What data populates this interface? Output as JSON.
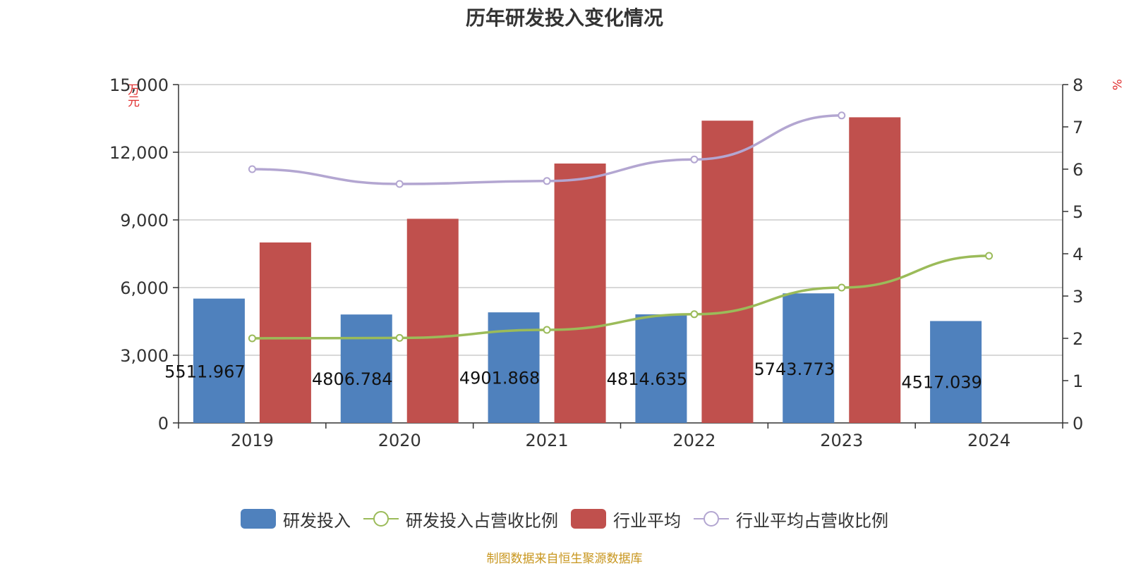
{
  "chart_data": {
    "type": "bar",
    "title": "历年研发投入变化情况",
    "categories": [
      "2019",
      "2020",
      "2021",
      "2022",
      "2023",
      "2024"
    ],
    "y_left": {
      "unit_label": "万元",
      "ylim": [
        0,
        15000
      ],
      "ticks": [
        "0",
        "3,000",
        "6,000",
        "9,000",
        "12,000",
        "15,000"
      ]
    },
    "y_right": {
      "unit_label": "%",
      "ylim": [
        0,
        8
      ],
      "ticks": [
        "0",
        "1",
        "2",
        "3",
        "4",
        "5",
        "6",
        "7",
        "8"
      ]
    },
    "grid": true,
    "legend_position": "bottom",
    "series": [
      {
        "name": "研发投入",
        "type": "bar",
        "axis": "left",
        "color": "#4f81bd",
        "values": [
          5511.967,
          4806.784,
          4901.868,
          4814.635,
          5743.773,
          4517.039
        ],
        "data_labels": [
          "5511.967",
          "4806.784",
          "4901.868",
          "4814.635",
          "5743.773",
          "4517.039"
        ]
      },
      {
        "name": "研发投入占营收比例",
        "type": "line",
        "axis": "right",
        "color": "#9bbb59",
        "values": [
          2.0,
          2.01,
          2.2,
          2.57,
          3.2,
          3.95
        ]
      },
      {
        "name": "行业平均",
        "type": "bar",
        "axis": "left",
        "color": "#c0504d",
        "values": [
          8000,
          9050,
          11500,
          13400,
          13550,
          null
        ]
      },
      {
        "name": "行业平均占营收比例",
        "type": "line",
        "axis": "right",
        "color": "#b3a6d1",
        "values": [
          6.0,
          5.65,
          5.72,
          6.23,
          7.27,
          null
        ]
      }
    ]
  },
  "source_note": "制图数据来自恒生聚源数据库"
}
